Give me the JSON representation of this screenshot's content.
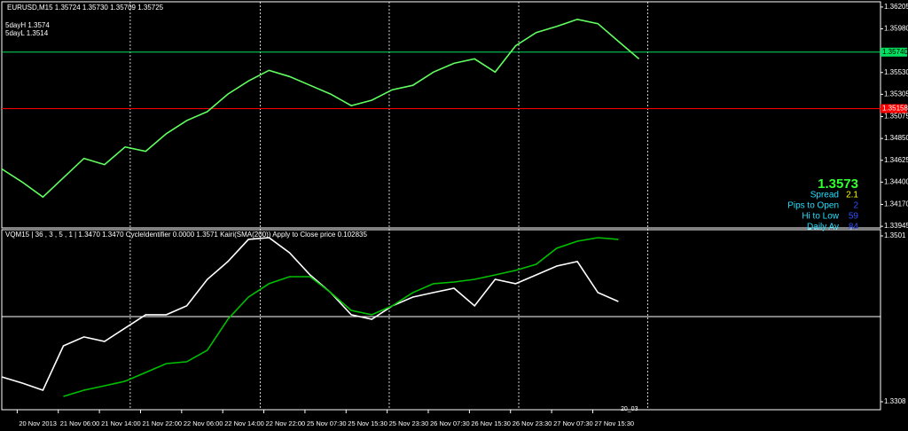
{
  "header": {
    "symbol_line": "EURUSD,M15  1.35724 1.35730 1.35709 1.35725",
    "high_label": "5dayH 1.3574",
    "low_label": "5dayL 1.3514"
  },
  "indicator_header": "VQM15 | 36 , 3 , 5 , 1 | 1.3470 1.3470  CycleIdentifier 0.0000 1.3571  Kairi(SMA(200)) Apply to Close price 0.102835",
  "info_panel": {
    "price": "1.3573",
    "rows": [
      {
        "label": "Spread",
        "value": "2.1",
        "color": "#ffff00"
      },
      {
        "label": "Pips to Open",
        "value": "2",
        "color": "#3050ff"
      },
      {
        "label": "Hi to Low",
        "value": "59",
        "color": "#3050ff"
      },
      {
        "label": "Daily Av",
        "value": "84",
        "color": "#3050ff"
      }
    ]
  },
  "bar_label": "20_03",
  "chart_data": [
    {
      "type": "line",
      "xlim": [
        0,
        171
      ],
      "ylim": [
        1.33928,
        1.36259
      ],
      "yticks": [
        1.36205,
        {
          "value": 1.3598,
          "label": "1.35980"
        },
        {
          "value": 1.3553,
          "label": "1.35530"
        },
        1.35305,
        1.35075,
        {
          "value": 1.3485,
          "label": "1.34850"
        },
        1.34625,
        {
          "value": 1.344,
          "label": "1.34400"
        },
        {
          "value": 1.3417,
          "label": "1.34170"
        },
        1.33945
      ],
      "separators": [
        25,
        50.3,
        75.4,
        100.6,
        125.7
      ],
      "levels": [
        {
          "value": 1.3574,
          "label": "1.35740",
          "color": "#00e060"
        },
        {
          "value": 1.35158,
          "label": "1.35158",
          "color": "#ff0000"
        }
      ],
      "x": [
        0,
        4,
        8,
        12,
        16,
        20,
        24,
        28,
        32,
        36,
        40,
        44,
        48,
        52,
        56,
        60,
        64,
        68,
        72,
        76,
        80,
        84,
        88,
        92,
        96,
        100,
        104,
        108,
        112,
        116,
        120,
        124
      ],
      "series": [
        {
          "color": "#60ff60",
          "values": [
            1.34536,
            1.344,
            1.34246,
            1.34445,
            1.34645,
            1.34581,
            1.34763,
            1.34718,
            1.34899,
            1.35035,
            1.35126,
            1.35307,
            1.35443,
            1.35552,
            1.35488,
            1.35398,
            1.35307,
            1.35189,
            1.35244,
            1.35352,
            1.35398,
            1.35534,
            1.35625,
            1.3567,
            1.35534,
            1.35806,
            1.35942,
            1.36005,
            1.36078,
            1.36033,
            1.35851,
            1.3567
          ]
        }
      ]
    },
    {
      "type": "line",
      "xlim": [
        0,
        171
      ],
      "ylim": [
        1.32987,
        1.35082
      ],
      "yticks": [
        1.3501,
        1.3308
      ],
      "xticks": [
        {
          "value": 3,
          "label": "20 Nov 2013"
        },
        {
          "value": 11,
          "label": "21 Nov 06:00"
        },
        {
          "value": 19,
          "label": "21 Nov 14:00"
        },
        {
          "value": 27,
          "label": "21 Nov 22:00"
        },
        {
          "value": 35,
          "label": "22 Nov 06:00"
        },
        {
          "value": 43,
          "label": "22 Nov 14:00"
        },
        {
          "value": 51,
          "label": "22 Nov 22:00"
        },
        {
          "value": 59,
          "label": "25 Nov 07:30"
        },
        {
          "value": 67,
          "label": "25 Nov 15:30"
        },
        {
          "value": 75,
          "label": "25 Nov 23:30"
        },
        {
          "value": 83,
          "label": "26 Nov 07:30"
        },
        {
          "value": 91,
          "label": "26 Nov 15:30"
        },
        {
          "value": 99,
          "label": "26 Nov 23:30"
        },
        {
          "value": 107,
          "label": "27 Nov 07:30"
        },
        {
          "value": 115,
          "label": "27 Nov 15:30"
        }
      ],
      "levels": [
        {
          "value": 1.3407,
          "color": "#ffffff"
        }
      ],
      "x": [
        0,
        4,
        8,
        12,
        16,
        20,
        24,
        28,
        32,
        36,
        40,
        44,
        48,
        52,
        56,
        60,
        64,
        68,
        72,
        76,
        80,
        84,
        88,
        92,
        96,
        100,
        104,
        108,
        112,
        116,
        120
      ],
      "series": [
        {
          "color": "#ffffff",
          "values": [
            1.33369,
            1.33297,
            1.33214,
            1.3373,
            1.33834,
            1.33782,
            1.33937,
            1.34092,
            1.34092,
            1.34195,
            1.34504,
            1.34711,
            1.34969,
            1.34989,
            1.34814,
            1.34556,
            1.3435,
            1.34092,
            1.3404,
            1.34195,
            1.34298,
            1.3435,
            1.34401,
            1.34195,
            1.34504,
            1.34453,
            1.34556,
            1.34659,
            1.34711,
            1.3435,
            1.34246
          ]
        },
        {
          "color": "#00c000",
          "values": [
            null,
            null,
            null,
            1.33142,
            1.33214,
            1.33266,
            1.33318,
            1.3342,
            1.33524,
            1.33545,
            1.33679,
            1.3404,
            1.34298,
            1.34453,
            1.34535,
            1.34535,
            1.3435,
            1.34143,
            1.34092,
            1.34195,
            1.3435,
            1.34453,
            1.34473,
            1.34504,
            1.34556,
            1.34608,
            1.3468,
            1.34866,
            1.34948,
            1.34989,
            1.34969
          ]
        }
      ]
    }
  ]
}
